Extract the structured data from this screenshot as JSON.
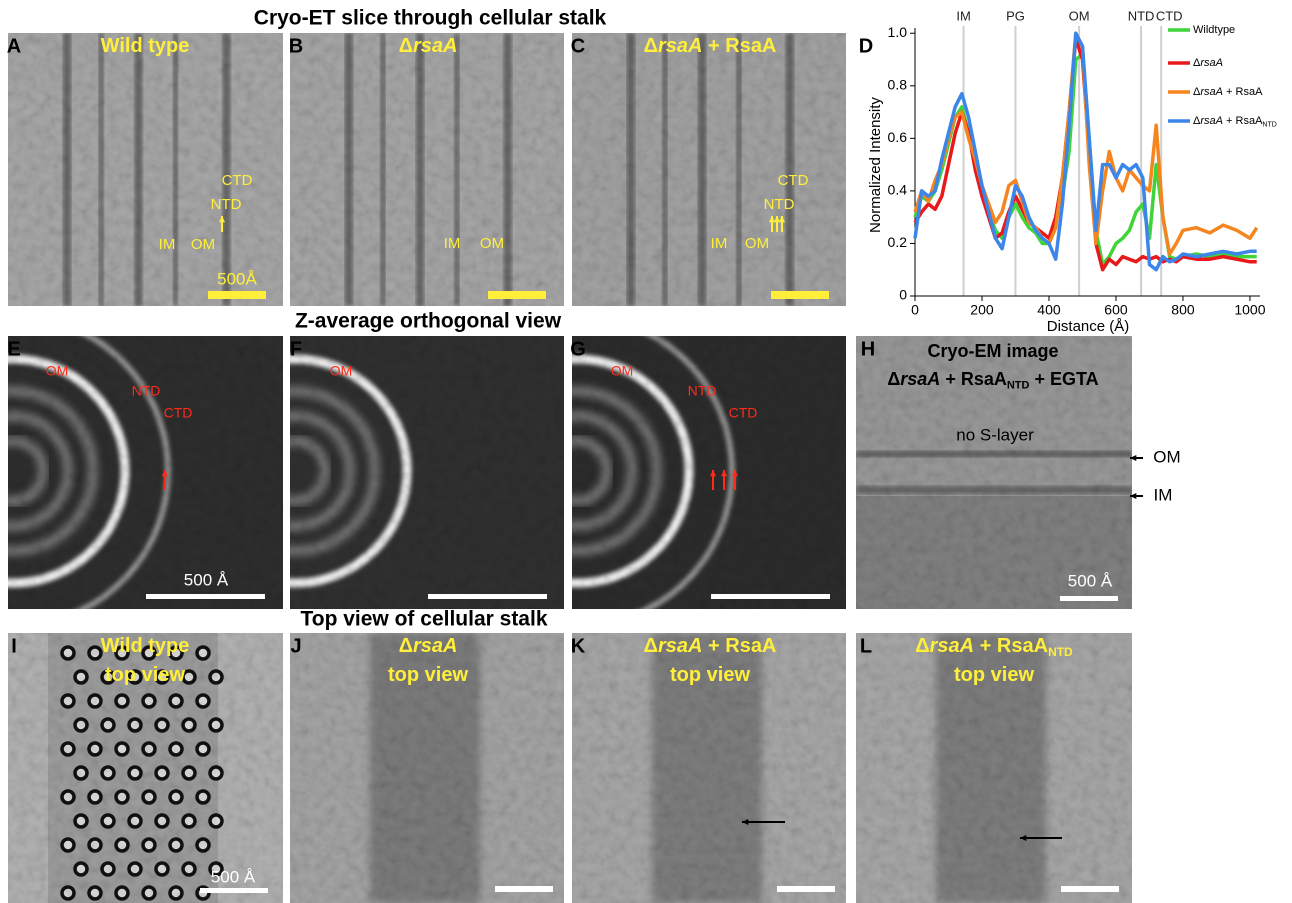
{
  "sections": [
    "Cryo-ET slice through cellular stalk",
    "Z-average orthogonal view",
    "Top view of cellular stalk"
  ],
  "panels": [
    {
      "letter": "A",
      "title": [
        [
          {
            "text": "Wild type"
          }
        ]
      ],
      "labels": [
        "CTD",
        "NTD",
        "IM",
        "OM"
      ],
      "scale": "500Å"
    },
    {
      "letter": "B",
      "title": [
        [
          {
            "text": "Δ"
          },
          {
            "text": "rsaA",
            "style": "italic"
          }
        ]
      ],
      "labels": [
        "IM",
        "OM"
      ]
    },
    {
      "letter": "C",
      "title": [
        [
          {
            "text": "Δ"
          },
          {
            "text": "rsaA",
            "style": "italic"
          },
          {
            "text": " + RsaA"
          }
        ]
      ],
      "labels": [
        "CTD",
        "NTD",
        "IM",
        "OM"
      ]
    },
    {
      "letter": "D"
    },
    {
      "letter": "E",
      "labels": [
        "OM",
        "NTD",
        "CTD"
      ],
      "scale": "500 Å"
    },
    {
      "letter": "F",
      "labels": [
        "OM"
      ]
    },
    {
      "letter": "G",
      "labels": [
        "OM",
        "NTD",
        "CTD"
      ]
    },
    {
      "letter": "H",
      "title": [
        [
          {
            "text": "Cryo-EM image"
          }
        ],
        [
          {
            "text": "Δ"
          },
          {
            "text": "rsaA",
            "style": "italic"
          },
          {
            "text": " + RsaA"
          },
          {
            "text": "NTD",
            "style": "sub"
          },
          {
            "text": " + EGTA"
          }
        ]
      ],
      "labels": [
        "no S-layer",
        "OM",
        "IM"
      ],
      "scale": "500 Å"
    },
    {
      "letter": "I",
      "title": [
        [
          {
            "text": "Wild type"
          }
        ],
        [
          {
            "text": "top view"
          }
        ]
      ],
      "scale": "500 Å"
    },
    {
      "letter": "J",
      "title": [
        [
          {
            "text": "Δ"
          },
          {
            "text": "rsaA",
            "style": "italic"
          }
        ],
        [
          {
            "text": "top view"
          }
        ]
      ]
    },
    {
      "letter": "K",
      "title": [
        [
          {
            "text": "Δ"
          },
          {
            "text": "rsaA",
            "style": "italic"
          },
          {
            "text": " + RsaA"
          }
        ],
        [
          {
            "text": "top view"
          }
        ]
      ]
    },
    {
      "letter": "L",
      "title": [
        [
          {
            "text": "Δ"
          },
          {
            "text": "rsaA",
            "style": "italic"
          },
          {
            "text": " + RsaA"
          },
          {
            "text": "NTD",
            "style": "sub"
          }
        ],
        [
          {
            "text": "top view"
          }
        ]
      ]
    }
  ],
  "chart_data": {
    "type": "line",
    "xlabel": "Distance (Å)",
    "ylabel": "Normalized Intensity",
    "xlim": [
      0,
      1030
    ],
    "ylim": [
      0,
      1.02
    ],
    "xticks": [
      0,
      200,
      400,
      600,
      800,
      1000
    ],
    "yticks": [
      0,
      0.2,
      0.4,
      0.6,
      0.8,
      {
        "value": 1,
        "label": "1.0"
      }
    ],
    "vlines": [
      {
        "label": "IM",
        "x": 145
      },
      {
        "label": "PG",
        "x": 300
      },
      {
        "label": "OM",
        "x": 490
      },
      {
        "label": "NTD",
        "x": 675
      },
      {
        "label": "CTD",
        "x": 735
      }
    ],
    "x": [
      0,
      20,
      40,
      60,
      80,
      100,
      120,
      140,
      160,
      180,
      200,
      220,
      240,
      260,
      280,
      300,
      320,
      340,
      360,
      380,
      400,
      420,
      440,
      460,
      480,
      500,
      520,
      540,
      560,
      580,
      600,
      620,
      640,
      660,
      680,
      700,
      720,
      740,
      760,
      780,
      800,
      840,
      880,
      920,
      960,
      1000,
      1020
    ],
    "series": [
      {
        "name": [
          {
            "text": "Wildtype"
          }
        ],
        "color": "#3fd43a",
        "values": [
          0.3,
          0.38,
          0.36,
          0.4,
          0.48,
          0.58,
          0.68,
          0.72,
          0.62,
          0.5,
          0.4,
          0.32,
          0.25,
          0.22,
          0.3,
          0.35,
          0.3,
          0.26,
          0.24,
          0.2,
          0.2,
          0.28,
          0.38,
          0.55,
          0.9,
          0.92,
          0.6,
          0.25,
          0.12,
          0.15,
          0.2,
          0.22,
          0.25,
          0.32,
          0.35,
          0.22,
          0.5,
          0.3,
          0.15,
          0.14,
          0.15,
          0.16,
          0.15,
          0.16,
          0.15,
          0.15,
          0.15
        ]
      },
      {
        "name": [
          {
            "text": "Δ"
          },
          {
            "text": "rsaA",
            "style": "italic"
          }
        ],
        "color": "#e8181b",
        "values": [
          0.28,
          0.32,
          0.35,
          0.33,
          0.38,
          0.5,
          0.62,
          0.7,
          0.62,
          0.48,
          0.38,
          0.3,
          0.22,
          0.24,
          0.32,
          0.38,
          0.33,
          0.28,
          0.26,
          0.24,
          0.22,
          0.3,
          0.45,
          0.7,
          0.98,
          0.9,
          0.55,
          0.2,
          0.1,
          0.14,
          0.12,
          0.15,
          0.14,
          0.13,
          0.15,
          0.14,
          0.15,
          0.13,
          0.14,
          0.13,
          0.15,
          0.14,
          0.14,
          0.15,
          0.14,
          0.13,
          0.13
        ]
      },
      {
        "name": [
          {
            "text": "Δ"
          },
          {
            "text": "rsaA",
            "style": "italic"
          },
          {
            "text": " + RsaA"
          }
        ],
        "color": "#f5851f",
        "values": [
          0.32,
          0.4,
          0.36,
          0.44,
          0.5,
          0.6,
          0.68,
          0.7,
          0.6,
          0.52,
          0.42,
          0.35,
          0.28,
          0.32,
          0.42,
          0.44,
          0.36,
          0.28,
          0.26,
          0.22,
          0.2,
          0.26,
          0.45,
          0.7,
          1.0,
          0.95,
          0.5,
          0.2,
          0.4,
          0.55,
          0.45,
          0.4,
          0.48,
          0.45,
          0.42,
          0.4,
          0.65,
          0.3,
          0.16,
          0.2,
          0.25,
          0.26,
          0.24,
          0.27,
          0.25,
          0.22,
          0.26
        ]
      },
      {
        "name": [
          {
            "text": "Δ"
          },
          {
            "text": "rsaA",
            "style": "italic"
          },
          {
            "text": " + RsaA"
          },
          {
            "text": "NTD",
            "style": "sub"
          }
        ],
        "color": "#3b86e8",
        "values": [
          0.22,
          0.4,
          0.38,
          0.4,
          0.52,
          0.62,
          0.72,
          0.77,
          0.68,
          0.55,
          0.42,
          0.32,
          0.22,
          0.18,
          0.3,
          0.42,
          0.38,
          0.3,
          0.25,
          0.22,
          0.2,
          0.14,
          0.35,
          0.65,
          1.0,
          0.95,
          0.6,
          0.25,
          0.5,
          0.5,
          0.45,
          0.5,
          0.48,
          0.5,
          0.45,
          0.12,
          0.1,
          0.15,
          0.13,
          0.14,
          0.16,
          0.15,
          0.16,
          0.17,
          0.16,
          0.17,
          0.17
        ]
      }
    ]
  }
}
